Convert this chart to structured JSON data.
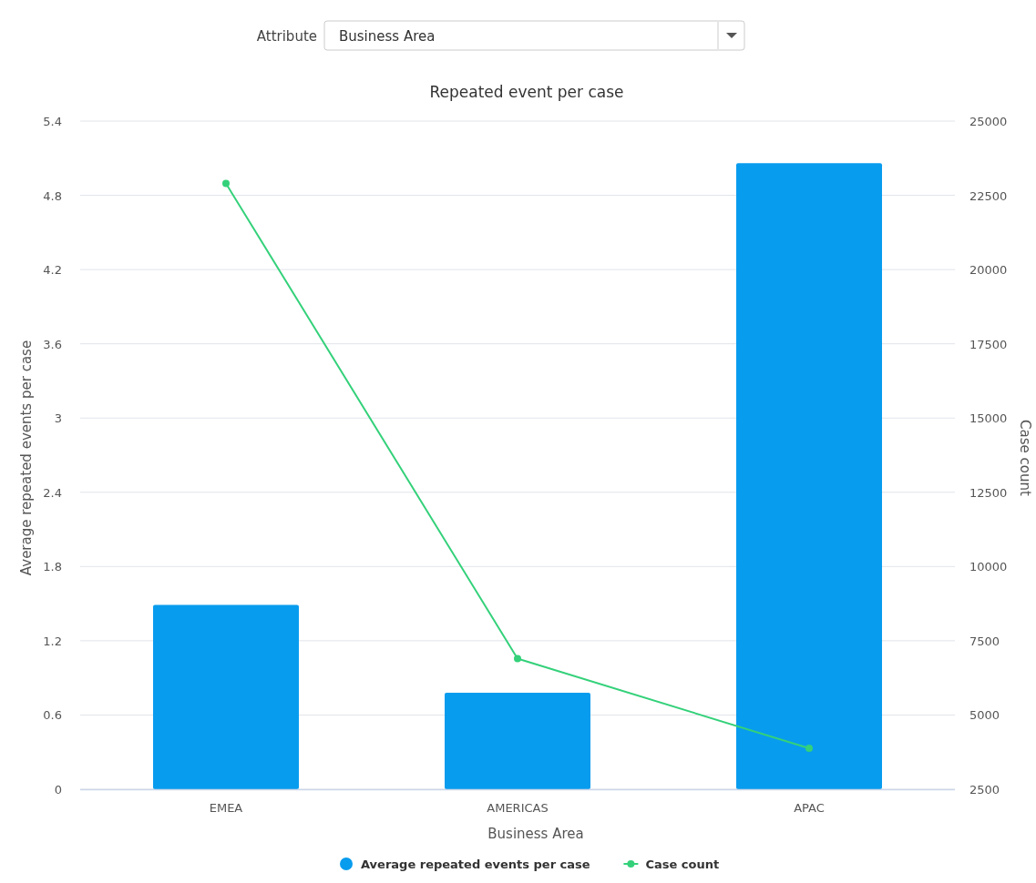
{
  "chart_data": {
    "type": "bar",
    "title": "Repeated event per case",
    "xlabel": "Business Area",
    "ylabel": "Average repeated events per case",
    "y2label": "Case count",
    "categories": [
      "EMEA",
      "AMERICAS",
      "APAC"
    ],
    "series": [
      {
        "name": "Average repeated events per case",
        "type": "bar",
        "color": "#089cee",
        "values": [
          1.49,
          0.78,
          5.06
        ]
      },
      {
        "name": "Case count",
        "type": "line",
        "axis": "y2",
        "color": "#34d17a",
        "values": [
          22900,
          6900,
          3880
        ]
      }
    ],
    "ylim": [
      0,
      5.4
    ],
    "yticks": [
      0,
      0.6,
      1.2,
      1.8,
      2.4,
      3,
      3.6,
      4.2,
      4.8,
      5.4
    ],
    "y2lim": [
      2500,
      25000
    ],
    "y2ticks": [
      2500,
      5000,
      7500,
      10000,
      12500,
      15000,
      17500,
      20000,
      22500,
      25000
    ],
    "grid": "y",
    "legend": "bottom",
    "marker": "circle",
    "line_style": "solid",
    "annotations": [
      "Attribute",
      "Business Area"
    ]
  }
}
